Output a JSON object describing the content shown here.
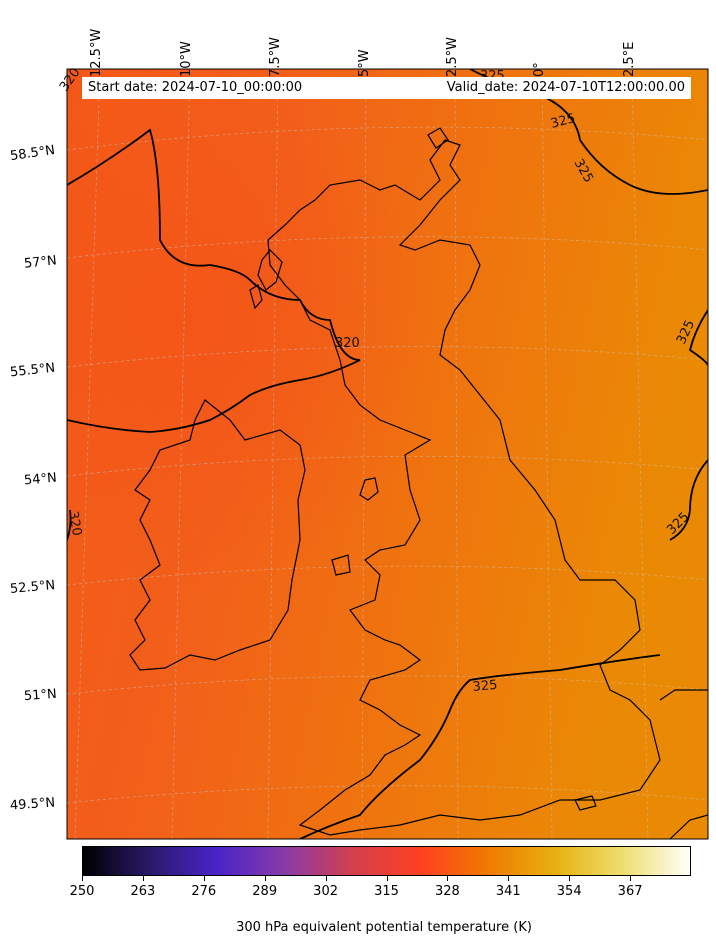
{
  "header": {
    "start_date": "Start date: 2024-07-10_00:00:00",
    "valid_date": "Valid_date: 2024-07-10T12:00:00.00"
  },
  "lon_labels": [
    "12.5°W",
    "10°W",
    "7.5°W",
    "5°W",
    "2.5°W",
    "0°",
    "2.5°E"
  ],
  "lat_labels": [
    "58.5°N",
    "57°N",
    "55.5°N",
    "54°N",
    "52.5°N",
    "51°N",
    "49.5°N"
  ],
  "contour_labels": [
    "320",
    "325",
    "325",
    "325",
    "320",
    "325",
    "325",
    "320",
    "325"
  ],
  "colorbar": {
    "ticks": [
      "250",
      "263",
      "276",
      "289",
      "302",
      "315",
      "328",
      "341",
      "354",
      "367"
    ],
    "title": "300 hPa equivalent potential temperature (K)",
    "colors": [
      "#000000",
      "#2a1a6a",
      "#4a24c8",
      "#8a3aa8",
      "#d2404e",
      "#ff4020",
      "#f07a00",
      "#e8b010",
      "#eede70",
      "#fffff8"
    ]
  },
  "colors": {
    "field_west": "#f45a1a",
    "field_east": "#ee8a06",
    "coast": "#000000",
    "contour": "#000000"
  }
}
